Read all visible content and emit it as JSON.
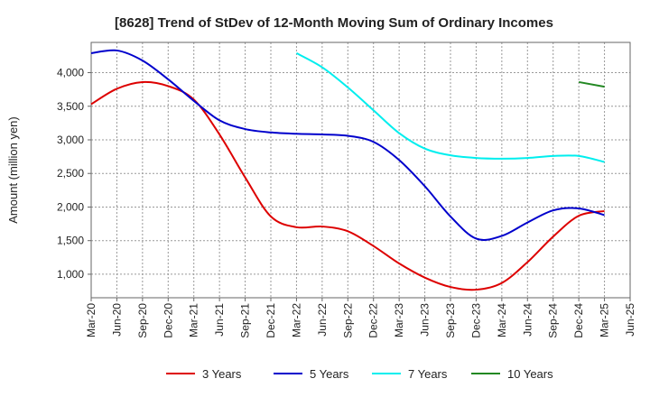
{
  "chart_data": {
    "type": "line",
    "title": "[8628]  Trend of StDev of 12-Month Moving Sum of Ordinary Incomes",
    "xlabel": "",
    "ylabel": "Amount (million yen)",
    "x_ticks": [
      "Mar-20",
      "Jun-20",
      "Sep-20",
      "Dec-20",
      "Mar-21",
      "Jun-21",
      "Sep-21",
      "Dec-21",
      "Mar-22",
      "Jun-22",
      "Sep-22",
      "Dec-22",
      "Mar-23",
      "Jun-23",
      "Sep-23",
      "Dec-23",
      "Mar-24",
      "Jun-24",
      "Sep-24",
      "Dec-24",
      "Mar-25",
      "Jun-25"
    ],
    "y_ticks": [
      "1,000",
      "1,500",
      "2,000",
      "2,500",
      "3,000",
      "3,500",
      "4,000"
    ],
    "y_tick_values": [
      1000,
      1500,
      2000,
      2500,
      3000,
      3500,
      4000
    ],
    "ylim": [
      650,
      4450
    ],
    "grid": true,
    "legend_position": "bottom",
    "series": [
      {
        "name": "3 Years",
        "color": "#dd0000",
        "x": [
          "Mar-20",
          "Jun-20",
          "Sep-20",
          "Dec-20",
          "Mar-21",
          "Jun-21",
          "Sep-21",
          "Dec-21",
          "Mar-22",
          "Jun-22",
          "Sep-22",
          "Dec-22",
          "Mar-23",
          "Jun-23",
          "Sep-23",
          "Dec-23",
          "Mar-24",
          "Jun-24",
          "Sep-24",
          "Dec-24",
          "Mar-25"
        ],
        "values": [
          3530,
          3760,
          3860,
          3800,
          3600,
          3080,
          2440,
          1860,
          1700,
          1710,
          1640,
          1420,
          1160,
          950,
          810,
          770,
          870,
          1180,
          1560,
          1870,
          1940
        ]
      },
      {
        "name": "5 Years",
        "color": "#0000cc",
        "x": [
          "Mar-20",
          "Jun-20",
          "Sep-20",
          "Dec-20",
          "Mar-21",
          "Jun-21",
          "Sep-21",
          "Dec-21",
          "Mar-22",
          "Jun-22",
          "Sep-22",
          "Dec-22",
          "Mar-23",
          "Jun-23",
          "Sep-23",
          "Dec-23",
          "Mar-24",
          "Jun-24",
          "Sep-24",
          "Dec-24",
          "Mar-25"
        ],
        "values": [
          4290,
          4330,
          4180,
          3900,
          3580,
          3290,
          3160,
          3110,
          3090,
          3080,
          3060,
          2970,
          2700,
          2310,
          1860,
          1530,
          1570,
          1770,
          1950,
          1980,
          1880
        ]
      },
      {
        "name": "7 Years",
        "color": "#00eeee",
        "x": [
          "Mar-22",
          "Jun-22",
          "Sep-22",
          "Dec-22",
          "Mar-23",
          "Jun-23",
          "Sep-23",
          "Dec-23",
          "Mar-24",
          "Jun-24",
          "Sep-24",
          "Dec-24",
          "Mar-25"
        ],
        "values": [
          4290,
          4080,
          3780,
          3440,
          3100,
          2870,
          2770,
          2730,
          2720,
          2730,
          2760,
          2760,
          2670
        ]
      },
      {
        "name": "10 Years",
        "color": "#228822",
        "x": [
          "Dec-24",
          "Mar-25"
        ],
        "values": [
          3860,
          3790
        ]
      }
    ]
  }
}
